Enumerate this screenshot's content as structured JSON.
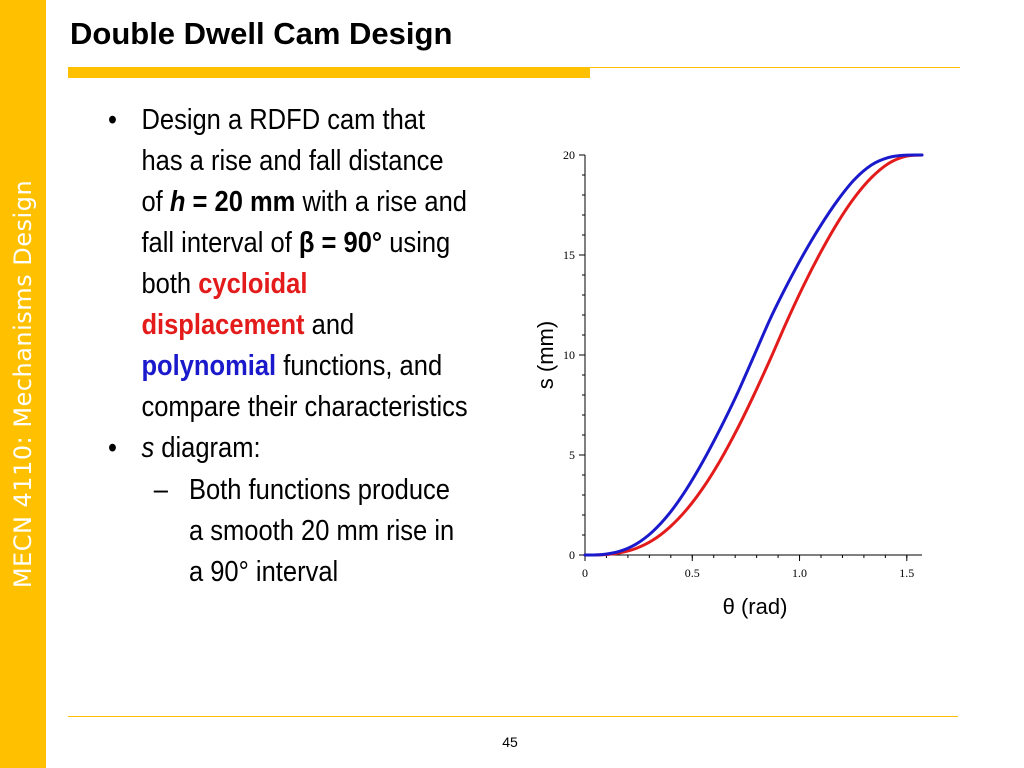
{
  "slide": {
    "title": "Double Dwell Cam Design",
    "sidebar_label": "MECN 4110: Mechanisms Design",
    "page_number": "45",
    "bullets": [
      {
        "runs": [
          {
            "text": "Design a RDFD cam that has a rise and fall distance of ",
            "style": "normal"
          },
          {
            "text": "h",
            "style": "bold-italic"
          },
          {
            "text": " = 20 mm",
            "style": "bold"
          },
          {
            "text": " with a rise and fall interval of ",
            "style": "normal"
          },
          {
            "text": "β = 90°",
            "style": "bold"
          },
          {
            "text": " using both ",
            "style": "normal"
          },
          {
            "text": "cycloidal displacement",
            "style": "bold-red"
          },
          {
            "text": " and ",
            "style": "normal"
          },
          {
            "text": "polynomial",
            "style": "bold-blue"
          },
          {
            "text": " functions, and compare their characteristics",
            "style": "normal"
          }
        ]
      },
      {
        "runs": [
          {
            "text": "s",
            "style": "italic"
          },
          {
            "text": " diagram:",
            "style": "normal"
          }
        ]
      }
    ],
    "sub_bullets": [
      {
        "text": "Both functions produce a smooth 20 mm rise in a 90° interval"
      }
    ],
    "bullet_symbol": "•",
    "sub_bullet_symbol": "–"
  },
  "colors": {
    "accent": "#FFC000",
    "cycloidal": "#E31B1B",
    "polynomial": "#1A1ACC"
  },
  "chart_data": {
    "type": "line",
    "xlabel": "θ (rad)",
    "ylabel": "s (mm)",
    "xlim": [
      0,
      1.5708
    ],
    "ylim": [
      0,
      20
    ],
    "xticks": [
      0,
      0.5,
      1.0,
      1.5
    ],
    "xtick_labels": [
      "0",
      "0.5",
      "1.0",
      "1.5"
    ],
    "yticks": [
      0,
      5,
      10,
      15,
      20
    ],
    "ytick_labels": [
      "0",
      "5",
      "10",
      "15",
      "20"
    ],
    "grid": false,
    "series": [
      {
        "color": "#E31B1B",
        "x": [
          0,
          0.0785,
          0.1571,
          0.2356,
          0.3142,
          0.3927,
          0.4712,
          0.5498,
          0.6283,
          0.7069,
          0.7854,
          0.8639,
          0.9425,
          1.021,
          1.0996,
          1.1781,
          1.2566,
          1.3352,
          1.4137,
          1.4923,
          1.5708
        ],
        "values": [
          0,
          0.01,
          0.1,
          0.32,
          0.73,
          1.37,
          2.24,
          3.35,
          4.69,
          6.24,
          7.96,
          9.8,
          11.72,
          13.52,
          15.16,
          16.63,
          17.88,
          18.87,
          19.57,
          19.93,
          20.0
        ]
      },
      {
        "color": "#1A1ACC",
        "x": [
          0,
          0.0785,
          0.1571,
          0.2356,
          0.3142,
          0.3927,
          0.4712,
          0.5498,
          0.6283,
          0.7069,
          0.7854,
          0.8639,
          0.9425,
          1.021,
          1.0996,
          1.1781,
          1.2566,
          1.3352,
          1.4137,
          1.4923,
          1.5708
        ],
        "values": [
          0,
          0.02,
          0.17,
          0.53,
          1.16,
          2.07,
          3.26,
          4.68,
          6.27,
          8.0,
          9.9,
          11.82,
          13.52,
          15.08,
          16.49,
          17.74,
          18.78,
          19.5,
          19.87,
          19.99,
          20.0
        ]
      }
    ]
  }
}
